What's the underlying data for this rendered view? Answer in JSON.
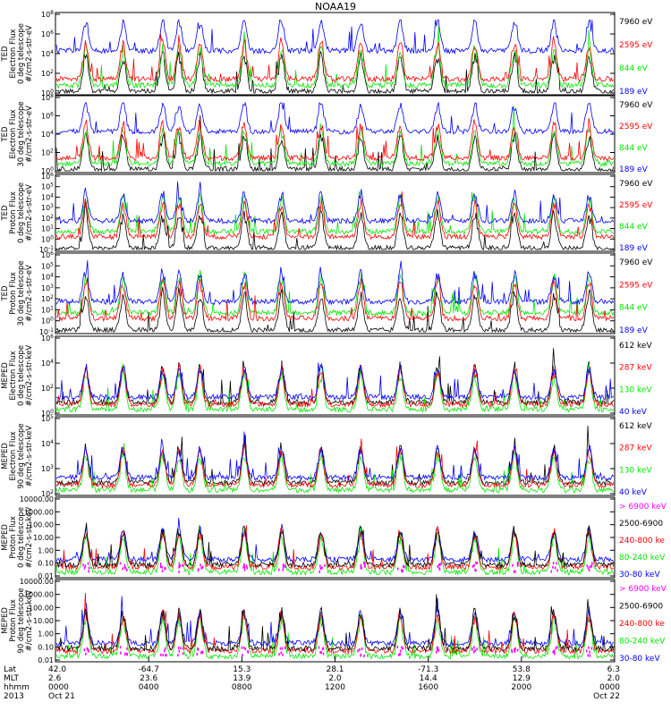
{
  "title": "NOAA19",
  "colors": {
    "black": "#000000",
    "red": "#ff0000",
    "green": "#00e600",
    "blue": "#0000ff",
    "magenta": "#ff00ff"
  },
  "panels": [
    {
      "ylabel": [
        "TED",
        "Electron Flux",
        "0 deg telescope",
        "#/cm2-s-str-eV"
      ],
      "ticks": [
        "10^0",
        "10^2",
        "10^4",
        "10^6",
        "10^8"
      ],
      "legend": [
        {
          "label": "7960 eV",
          "color": "black"
        },
        {
          "label": "2595 eV",
          "color": "red"
        },
        {
          "label": "844 eV",
          "color": "green"
        },
        {
          "label": "189 eV",
          "color": "blue"
        }
      ]
    },
    {
      "ylabel": [
        "TED",
        "Electron Flux",
        "30 deg telescope",
        "#/cm2-s-str-eV"
      ],
      "ticks": [
        "10^0",
        "10^2",
        "10^4",
        "10^6",
        "10^8"
      ],
      "legend": [
        {
          "label": "7960 eV",
          "color": "black"
        },
        {
          "label": "2595 eV",
          "color": "red"
        },
        {
          "label": "844 eV",
          "color": "green"
        },
        {
          "label": "189 eV",
          "color": "blue"
        }
      ]
    },
    {
      "ylabel": [
        "TED",
        "Proton Flux",
        "0 deg telescope",
        "#/cm2-s-str-eV"
      ],
      "ticks": [
        "10^-1",
        "10^0",
        "10^1",
        "10^2",
        "10^3",
        "10^4",
        "10^5",
        "10^6"
      ],
      "legend": [
        {
          "label": "7960 eV",
          "color": "black"
        },
        {
          "label": "2595 eV",
          "color": "red"
        },
        {
          "label": "844 eV",
          "color": "green"
        },
        {
          "label": "189 eV",
          "color": "blue"
        }
      ]
    },
    {
      "ylabel": [
        "TED",
        "Proton Flux",
        "30 deg telescope",
        "#/cm2-s-str-eV"
      ],
      "ticks": [
        "10^-1",
        "10^0",
        "10^1",
        "10^2",
        "10^3",
        "10^4",
        "10^5",
        "10^6"
      ],
      "legend": [
        {
          "label": "7960 eV",
          "color": "black"
        },
        {
          "label": "2595 eV",
          "color": "red"
        },
        {
          "label": "844 eV",
          "color": "green"
        },
        {
          "label": "189 eV",
          "color": "blue"
        }
      ]
    },
    {
      "ylabel": [
        "MEPED",
        "Electron Flux",
        "0 deg telescope",
        "#/cm2-s-str-keV"
      ],
      "ticks": [
        "10^0",
        "10^2",
        "10^4",
        "10^6"
      ],
      "legend": [
        {
          "label": "612 keV",
          "color": "black"
        },
        {
          "label": "287 keV",
          "color": "red"
        },
        {
          "label": "130 keV",
          "color": "green"
        },
        {
          "label": "40 keV",
          "color": "blue"
        }
      ]
    },
    {
      "ylabel": [
        "MEPED",
        "Electron Flux",
        "90 deg telescope",
        "#/cm2-s-str-keV"
      ],
      "ticks": [
        "10^2",
        "10^3",
        "10^4",
        "10^5"
      ],
      "legend": [
        {
          "label": "612 keV",
          "color": "black"
        },
        {
          "label": "287 keV",
          "color": "red"
        },
        {
          "label": "130 keV",
          "color": "green"
        },
        {
          "label": "40 keV",
          "color": "blue"
        }
      ]
    },
    {
      "ylabel": [
        "MEPED",
        "Proton Flux",
        "0 deg telescope",
        "#/cm2-s-str-keV"
      ],
      "ticks": [
        "0.01",
        "0.10",
        "1.00",
        "10.00",
        "100.00",
        "1000.00",
        "10000.00"
      ],
      "legend": [
        {
          "label": "> 6900 keV",
          "color": "magenta"
        },
        {
          "label": "2500-6900",
          "color": "black"
        },
        {
          "label": "240-800 ke",
          "color": "red"
        },
        {
          "label": "80-240 keV",
          "color": "green"
        },
        {
          "label": "30-80 keV",
          "color": "blue"
        }
      ]
    },
    {
      "ylabel": [
        "MEPED",
        "Proton Flux",
        "90 deg telescope",
        "#/cm2-s-str-keV"
      ],
      "ticks": [
        "0.01",
        "0.10",
        "1.00",
        "10.00",
        "100.00",
        "1000.00",
        "10000.00"
      ],
      "legend": [
        {
          "label": "> 6900 keV",
          "color": "magenta"
        },
        {
          "label": "2500-6900",
          "color": "black"
        },
        {
          "label": "240-800 ke",
          "color": "red"
        },
        {
          "label": "80-240 keV",
          "color": "green"
        },
        {
          "label": "30-80 keV",
          "color": "blue"
        }
      ]
    }
  ],
  "xaxis": {
    "row_labels": [
      "Lat",
      "MLT",
      "hhmm",
      "2013"
    ],
    "columns": [
      {
        "lat": "42.0",
        "mlt": "2.6",
        "hhmm": "0000",
        "date": "Oct 21"
      },
      {
        "lat": "-64.7",
        "mlt": "23.6",
        "hhmm": "0400",
        "date": ""
      },
      {
        "lat": "15.3",
        "mlt": "13.9",
        "hhmm": "0800",
        "date": ""
      },
      {
        "lat": "28.1",
        "mlt": "2.0",
        "hhmm": "1200",
        "date": ""
      },
      {
        "lat": "-71.3",
        "mlt": "14.4",
        "hhmm": "1600",
        "date": ""
      },
      {
        "lat": "53.8",
        "mlt": "12.9",
        "hhmm": "2000",
        "date": ""
      },
      {
        "lat": "6.3",
        "mlt": "2.0",
        "hhmm": "0000",
        "date": "Oct 22"
      }
    ]
  },
  "chart_data": {
    "type": "line",
    "title": "NOAA19",
    "x_range": [
      "2013-10-21 00:00",
      "2013-10-22 00:00"
    ],
    "x_ticks": [
      "0000",
      "0400",
      "0800",
      "1200",
      "1600",
      "2000",
      "0000"
    ],
    "pass_times_hours": [
      1.3,
      2.9,
      4.6,
      5.3,
      6.2,
      8.1,
      9.7,
      11.4,
      13.1,
      14.8,
      16.4,
      18.0,
      19.7,
      21.4,
      22.9
    ],
    "series_per_panel": 4,
    "note_legend_in_figure": true
  }
}
